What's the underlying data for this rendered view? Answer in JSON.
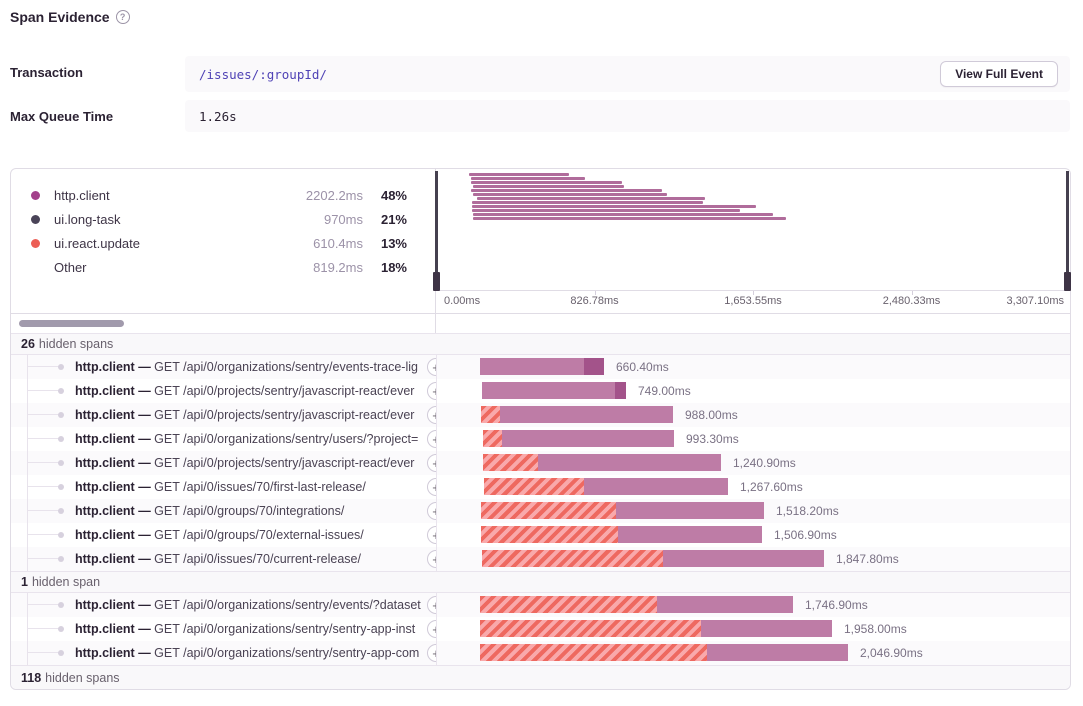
{
  "header": {
    "title": "Span Evidence",
    "help_icon": "?"
  },
  "fields": {
    "transaction": {
      "label": "Transaction",
      "value": "/issues/:groupId/",
      "button": "View Full Event"
    },
    "max_queue_time": {
      "label": "Max Queue Time",
      "value": "1.26s"
    }
  },
  "legend": {
    "items": [
      {
        "label": "http.client",
        "duration": "2202.2ms",
        "pct": "48%",
        "dot": "#A3418B"
      },
      {
        "label": "ui.long-task",
        "duration": "970ms",
        "pct": "21%",
        "dot": "#4A4458"
      },
      {
        "label": "ui.react.update",
        "duration": "610.4ms",
        "pct": "13%",
        "dot": "#EC5E55"
      },
      {
        "label": "Other",
        "duration": "819.2ms",
        "pct": "18%",
        "dot": null
      }
    ]
  },
  "minimap": {
    "bar_color": "#B06C9B",
    "bars": [
      [
        33,
        100
      ],
      [
        35,
        114
      ],
      [
        35,
        151
      ],
      [
        37,
        151
      ],
      [
        35,
        191
      ],
      [
        37,
        194
      ],
      [
        41,
        228
      ],
      [
        36,
        231
      ],
      [
        36,
        284
      ],
      [
        36,
        268
      ],
      [
        37,
        300
      ],
      [
        37,
        313
      ]
    ]
  },
  "axis": {
    "ticks": [
      "0.00ms",
      "826.78ms",
      "1,653.55ms",
      "2,480.33ms",
      "3,307.10ms"
    ]
  },
  "icons": {
    "plus": "+"
  },
  "span_tree": {
    "groups": [
      {
        "hidden": {
          "count": "26",
          "text": "hidden spans"
        },
        "rows": [
          {
            "op": "http.client",
            "sep": "—",
            "desc": "GET /api/0/organizations/sentry/events-trace-lig",
            "bar": {
              "offset": 43,
              "hatch": 0,
              "solid": 104,
              "dark": 20,
              "label": "660.40ms"
            }
          },
          {
            "op": "http.client",
            "sep": "—",
            "desc": "GET /api/0/projects/sentry/javascript-react/ever",
            "bar": {
              "offset": 45,
              "hatch": 0,
              "solid": 133,
              "dark": 11,
              "label": "749.00ms"
            }
          },
          {
            "op": "http.client",
            "sep": "—",
            "desc": "GET /api/0/projects/sentry/javascript-react/ever",
            "bar": {
              "offset": 44,
              "hatch": 19,
              "solid": 173,
              "dark": 0,
              "label": "988.00ms"
            }
          },
          {
            "op": "http.client",
            "sep": "—",
            "desc": "GET /api/0/organizations/sentry/users/?project=",
            "bar": {
              "offset": 46,
              "hatch": 19,
              "solid": 172,
              "dark": 0,
              "label": "993.30ms"
            }
          },
          {
            "op": "http.client",
            "sep": "—",
            "desc": "GET /api/0/projects/sentry/javascript-react/ever",
            "bar": {
              "offset": 46,
              "hatch": 55,
              "solid": 183,
              "dark": 0,
              "label": "1,240.90ms"
            }
          },
          {
            "op": "http.client",
            "sep": "—",
            "desc": "GET /api/0/issues/70/first-last-release/",
            "bar": {
              "offset": 47,
              "hatch": 100,
              "solid": 144,
              "dark": 0,
              "label": "1,267.60ms"
            }
          },
          {
            "op": "http.client",
            "sep": "—",
            "desc": "GET /api/0/groups/70/integrations/",
            "bar": {
              "offset": 44,
              "hatch": 135,
              "solid": 148,
              "dark": 0,
              "label": "1,518.20ms"
            }
          },
          {
            "op": "http.client",
            "sep": "—",
            "desc": "GET /api/0/groups/70/external-issues/",
            "bar": {
              "offset": 44,
              "hatch": 137,
              "solid": 144,
              "dark": 0,
              "label": "1,506.90ms"
            }
          },
          {
            "op": "http.client",
            "sep": "—",
            "desc": "GET /api/0/issues/70/current-release/",
            "bar": {
              "offset": 45,
              "hatch": 181,
              "solid": 161,
              "dark": 0,
              "label": "1,847.80ms"
            }
          }
        ]
      },
      {
        "hidden": {
          "count": "1",
          "text": "hidden span"
        },
        "rows": [
          {
            "op": "http.client",
            "sep": "—",
            "desc": "GET /api/0/organizations/sentry/events/?dataset",
            "bar": {
              "offset": 43,
              "hatch": 177,
              "solid": 136,
              "dark": 0,
              "label": "1,746.90ms"
            }
          },
          {
            "op": "http.client",
            "sep": "—",
            "desc": "GET /api/0/organizations/sentry/sentry-app-inst",
            "bar": {
              "offset": 43,
              "hatch": 221,
              "solid": 131,
              "dark": 0,
              "label": "1,958.00ms"
            }
          },
          {
            "op": "http.client",
            "sep": "—",
            "desc": "GET /api/0/organizations/sentry/sentry-app-com",
            "bar": {
              "offset": 43,
              "hatch": 227,
              "solid": 141,
              "dark": 0,
              "label": "2,046.90ms"
            }
          }
        ]
      }
    ],
    "footer": {
      "count": "118",
      "text": "hidden spans"
    }
  },
  "colors": {
    "bar": "#BE7CA6",
    "bar_dark": "#A3538A",
    "hatch_dark": "#EE6960",
    "hatch_light": "#F9A9AB",
    "handle": "#3E3446"
  }
}
